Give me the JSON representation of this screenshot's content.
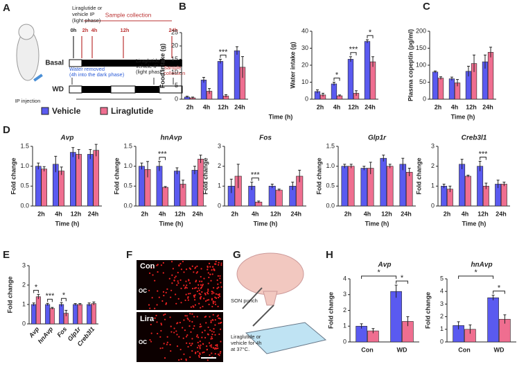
{
  "chart_data": [
    {
      "type": "bar",
      "ylabel": "Food intake (g)",
      "xlabel": "Time (h)",
      "categories": [
        "2h",
        "4h",
        "12h",
        "24h"
      ],
      "series": [
        {
          "name": "Vehicle",
          "color": "#5a5af0",
          "values": [
            0.8,
            7.2,
            14.2,
            18.2
          ],
          "errors": [
            0.3,
            1,
            0.8,
            1.5
          ]
        },
        {
          "name": "Liraglutide",
          "color": "#ef6e90",
          "values": [
            0.5,
            3.0,
            1.2,
            12
          ],
          "errors": [
            0.3,
            1,
            0.5,
            4
          ]
        }
      ],
      "ylim": [
        0,
        25
      ],
      "yticks": [
        0,
        5,
        10,
        15,
        20,
        25
      ],
      "annotations": [
        {
          "label": "***",
          "category": "12h"
        }
      ]
    },
    {
      "type": "bar",
      "ylabel": "Water intake (g)",
      "categories": [
        "2h",
        "4h",
        "12h",
        "24h"
      ],
      "series": [
        {
          "name": "Vehicle",
          "color": "#5a5af0",
          "values": [
            4.5,
            9,
            23.5,
            34
          ],
          "errors": [
            1,
            1,
            1.5,
            1
          ]
        },
        {
          "name": "Liraglutide",
          "color": "#ef6e90",
          "values": [
            2.5,
            2,
            3.5,
            22
          ],
          "errors": [
            1,
            0.5,
            1.5,
            3
          ]
        }
      ],
      "ylim": [
        0,
        40
      ],
      "yticks": [
        0,
        10,
        20,
        30,
        40
      ],
      "annotations": [
        {
          "label": "*",
          "category": "4h"
        },
        {
          "label": "***",
          "category": "12h"
        },
        {
          "label": "*",
          "category": "24h"
        }
      ]
    },
    {
      "type": "bar",
      "ylabel": "Plasma copeptin (pg/ml)",
      "xlabel": "Time (h)",
      "categories": [
        "2h",
        "4h",
        "12h",
        "24h"
      ],
      "series": [
        {
          "name": "Vehicle",
          "color": "#5a5af0",
          "values": [
            80,
            60,
            82,
            110
          ],
          "errors": [
            3,
            5,
            15,
            20
          ]
        },
        {
          "name": "Liraglutide",
          "color": "#ef6e90",
          "values": [
            62,
            48,
            105,
            138
          ],
          "errors": [
            4,
            10,
            25,
            15
          ]
        }
      ],
      "ylim": [
        0,
        200
      ],
      "yticks": [
        0,
        50,
        100,
        150,
        200
      ]
    },
    {
      "type": "bar",
      "title": "Avp",
      "ylabel": "Fold change",
      "xlabel": "Time (h)",
      "categories": [
        "2h",
        "4h",
        "12h",
        "24h"
      ],
      "series": [
        {
          "name": "Vehicle",
          "color": "#5a5af0",
          "values": [
            1.0,
            1.05,
            1.35,
            1.3
          ],
          "errors": [
            0.08,
            0.2,
            0.12,
            0.12
          ]
        },
        {
          "name": "Liraglutide",
          "color": "#ef6e90",
          "values": [
            0.93,
            0.88,
            1.3,
            1.4
          ],
          "errors": [
            0.06,
            0.1,
            0.12,
            0.15
          ]
        }
      ],
      "ylim": [
        0,
        1.5
      ],
      "yticks": [
        {
          "value": 0,
          "label": "0.0"
        },
        {
          "value": 0.5,
          "label": "0.5"
        },
        {
          "value": 1,
          "label": "1.0"
        },
        {
          "value": 1.5,
          "label": "1.5"
        }
      ]
    },
    {
      "type": "bar",
      "title": "hnAvp",
      "ylabel": "Fold change",
      "xlabel": "Time (h)",
      "categories": [
        "2h",
        "4h",
        "12h",
        "24h"
      ],
      "series": [
        {
          "name": "Vehicle",
          "color": "#5a5af0",
          "values": [
            1.0,
            1.0,
            0.88,
            0.9
          ],
          "errors": [
            0.08,
            0.12,
            0.08,
            0.1
          ]
        },
        {
          "name": "Liraglutide",
          "color": "#ef6e90",
          "values": [
            0.92,
            0.47,
            0.55,
            1.18
          ],
          "errors": [
            0.2,
            0.02,
            0.1,
            0.1
          ]
        }
      ],
      "ylim": [
        0,
        1.5
      ],
      "yticks": [
        {
          "value": 0,
          "label": "0.0"
        },
        {
          "value": 0.5,
          "label": "0.5"
        },
        {
          "value": 1,
          "label": "1.0"
        },
        {
          "value": 1.5,
          "label": "1.5"
        }
      ],
      "annotations": [
        {
          "label": "***",
          "category": "4h"
        }
      ]
    },
    {
      "type": "bar",
      "title": "Fos",
      "ylabel": "Fold change",
      "xlabel": "Time (h)",
      "categories": [
        "2h",
        "4h",
        "12h",
        "24h"
      ],
      "series": [
        {
          "name": "Vehicle",
          "color": "#5a5af0",
          "values": [
            1.0,
            1.0,
            1.0,
            1.0
          ],
          "errors": [
            0.35,
            0.2,
            0.1,
            0.2
          ]
        },
        {
          "name": "Liraglutide",
          "color": "#ef6e90",
          "values": [
            1.5,
            0.2,
            0.8,
            1.5
          ],
          "errors": [
            0.6,
            0.05,
            0.05,
            0.3
          ]
        }
      ],
      "ylim": [
        0,
        3
      ],
      "yticks": [
        0,
        1,
        2,
        3
      ],
      "annotations": [
        {
          "label": "***",
          "category": "4h"
        }
      ]
    },
    {
      "type": "bar",
      "title": "Glp1r",
      "ylabel": "Fold change",
      "xlabel": "Time (h)",
      "categories": [
        "2h",
        "4h",
        "12h",
        "24h"
      ],
      "series": [
        {
          "name": "Vehicle",
          "color": "#5a5af0",
          "values": [
            1.0,
            0.95,
            1.2,
            1.05
          ],
          "errors": [
            0.05,
            0.05,
            0.08,
            0.15
          ]
        },
        {
          "name": "Liraglutide",
          "color": "#ef6e90",
          "values": [
            1.0,
            0.95,
            1.0,
            0.85
          ],
          "errors": [
            0.05,
            0.15,
            0.05,
            0.1
          ]
        }
      ],
      "ylim": [
        0,
        1.5
      ],
      "yticks": [
        {
          "value": 0,
          "label": "0.0"
        },
        {
          "value": 0.5,
          "label": "0.5"
        },
        {
          "value": 1,
          "label": "1.0"
        },
        {
          "value": 1.5,
          "label": "1.5"
        }
      ]
    },
    {
      "type": "bar",
      "title": "Creb3l1",
      "ylabel": "Fold change",
      "xlabel": "Time (h)",
      "categories": [
        "2h",
        "4h",
        "12h",
        "24h"
      ],
      "series": [
        {
          "name": "Vehicle",
          "color": "#5a5af0",
          "values": [
            1.0,
            2.1,
            2.0,
            1.1
          ],
          "errors": [
            0.1,
            0.25,
            0.25,
            0.2
          ]
        },
        {
          "name": "Liraglutide",
          "color": "#ef6e90",
          "values": [
            0.85,
            1.5,
            1.0,
            1.1
          ],
          "errors": [
            0.15,
            0.05,
            0.15,
            0.1
          ]
        }
      ],
      "ylim": [
        0,
        3
      ],
      "yticks": [
        0,
        1,
        2,
        3
      ],
      "annotations": [
        {
          "label": "***",
          "category": "12h"
        }
      ]
    },
    {
      "type": "bar",
      "ylabel": "Fold change",
      "categories": [
        "Avp",
        "hnAvp",
        "Fos",
        "Glp1r",
        "Creb3l1"
      ],
      "series": [
        {
          "name": "Vehicle",
          "color": "#5a5af0",
          "values": [
            1.0,
            1.0,
            1.0,
            1.0,
            1.0
          ],
          "errors": [
            0.08,
            0.06,
            0.1,
            0.05,
            0.08
          ]
        },
        {
          "name": "Liraglutide",
          "color": "#ef6e90",
          "values": [
            1.4,
            0.8,
            0.55,
            1.0,
            1.05
          ],
          "errors": [
            0.12,
            0.05,
            0.15,
            0.05,
            0.08
          ]
        }
      ],
      "ylim": [
        0,
        3
      ],
      "yticks": [
        0,
        1,
        2,
        3
      ],
      "annotations": [
        {
          "label": "*",
          "category": "Avp"
        },
        {
          "label": "***",
          "category": "hnAvp"
        },
        {
          "label": "*",
          "category": "Fos"
        }
      ]
    },
    {
      "type": "bar",
      "title": "Avp",
      "ylabel": "Fold change",
      "categories": [
        "Con",
        "WD"
      ],
      "series": [
        {
          "name": "Vehicle",
          "color": "#5a5af0",
          "values": [
            1.0,
            3.2
          ],
          "errors": [
            0.15,
            0.4
          ]
        },
        {
          "name": "Liraglutide",
          "color": "#ef6e90",
          "values": [
            0.7,
            1.3
          ],
          "errors": [
            0.15,
            0.3
          ]
        }
      ],
      "ylim": [
        0,
        4
      ],
      "yticks": [
        0,
        1,
        2,
        3,
        4
      ],
      "annotations": [
        {
          "label": "*",
          "category": "WD"
        },
        {
          "label": "*",
          "from": "Con",
          "to": "WD"
        }
      ]
    },
    {
      "type": "bar",
      "title": "hnAvp",
      "ylabel": "Fold change",
      "categories": [
        "Con",
        "WD"
      ],
      "series": [
        {
          "name": "Vehicle",
          "color": "#5a5af0",
          "values": [
            1.3,
            3.5
          ],
          "errors": [
            0.3,
            0.2
          ]
        },
        {
          "name": "Liraglutide",
          "color": "#ef6e90",
          "values": [
            1.0,
            1.8
          ],
          "errors": [
            0.35,
            0.35
          ]
        }
      ],
      "ylim": [
        0,
        5
      ],
      "yticks": [
        0,
        1,
        2,
        3,
        4,
        5
      ],
      "annotations": [
        {
          "label": "*",
          "category": "WD"
        },
        {
          "label": "*",
          "from": "Con",
          "to": "WD"
        }
      ]
    }
  ],
  "figure": {
    "panel_labels": [
      "A",
      "B",
      "C",
      "D",
      "E",
      "F",
      "G",
      "H"
    ],
    "schematic_a": {
      "ip_label": [
        "Liraglutide or",
        "vehicle IP",
        "(light phase)"
      ],
      "sample_collection": "Sample collection",
      "timepoints": [
        "0h",
        "2h",
        "4h",
        "12h",
        "24h"
      ],
      "basal": "Basal",
      "water_removed": [
        "Water removed",
        "(4h into the dark phase)"
      ],
      "wd_ip_label": [
        "Liraglutide or",
        "vehicle IP",
        "(light phase)"
      ],
      "wd_sample": [
        "Sample",
        "collection"
      ],
      "wd": "WD",
      "ip_injection": "IP injection"
    },
    "histology_f": {
      "top": "Con",
      "top_region": "OC",
      "bottom": "Lira",
      "bottom_region": "OC"
    },
    "schematic_g": {
      "punch": "SON punch",
      "incubation": [
        "Liraglutide or",
        "vehicle for 4h",
        "at 37°C."
      ]
    }
  }
}
